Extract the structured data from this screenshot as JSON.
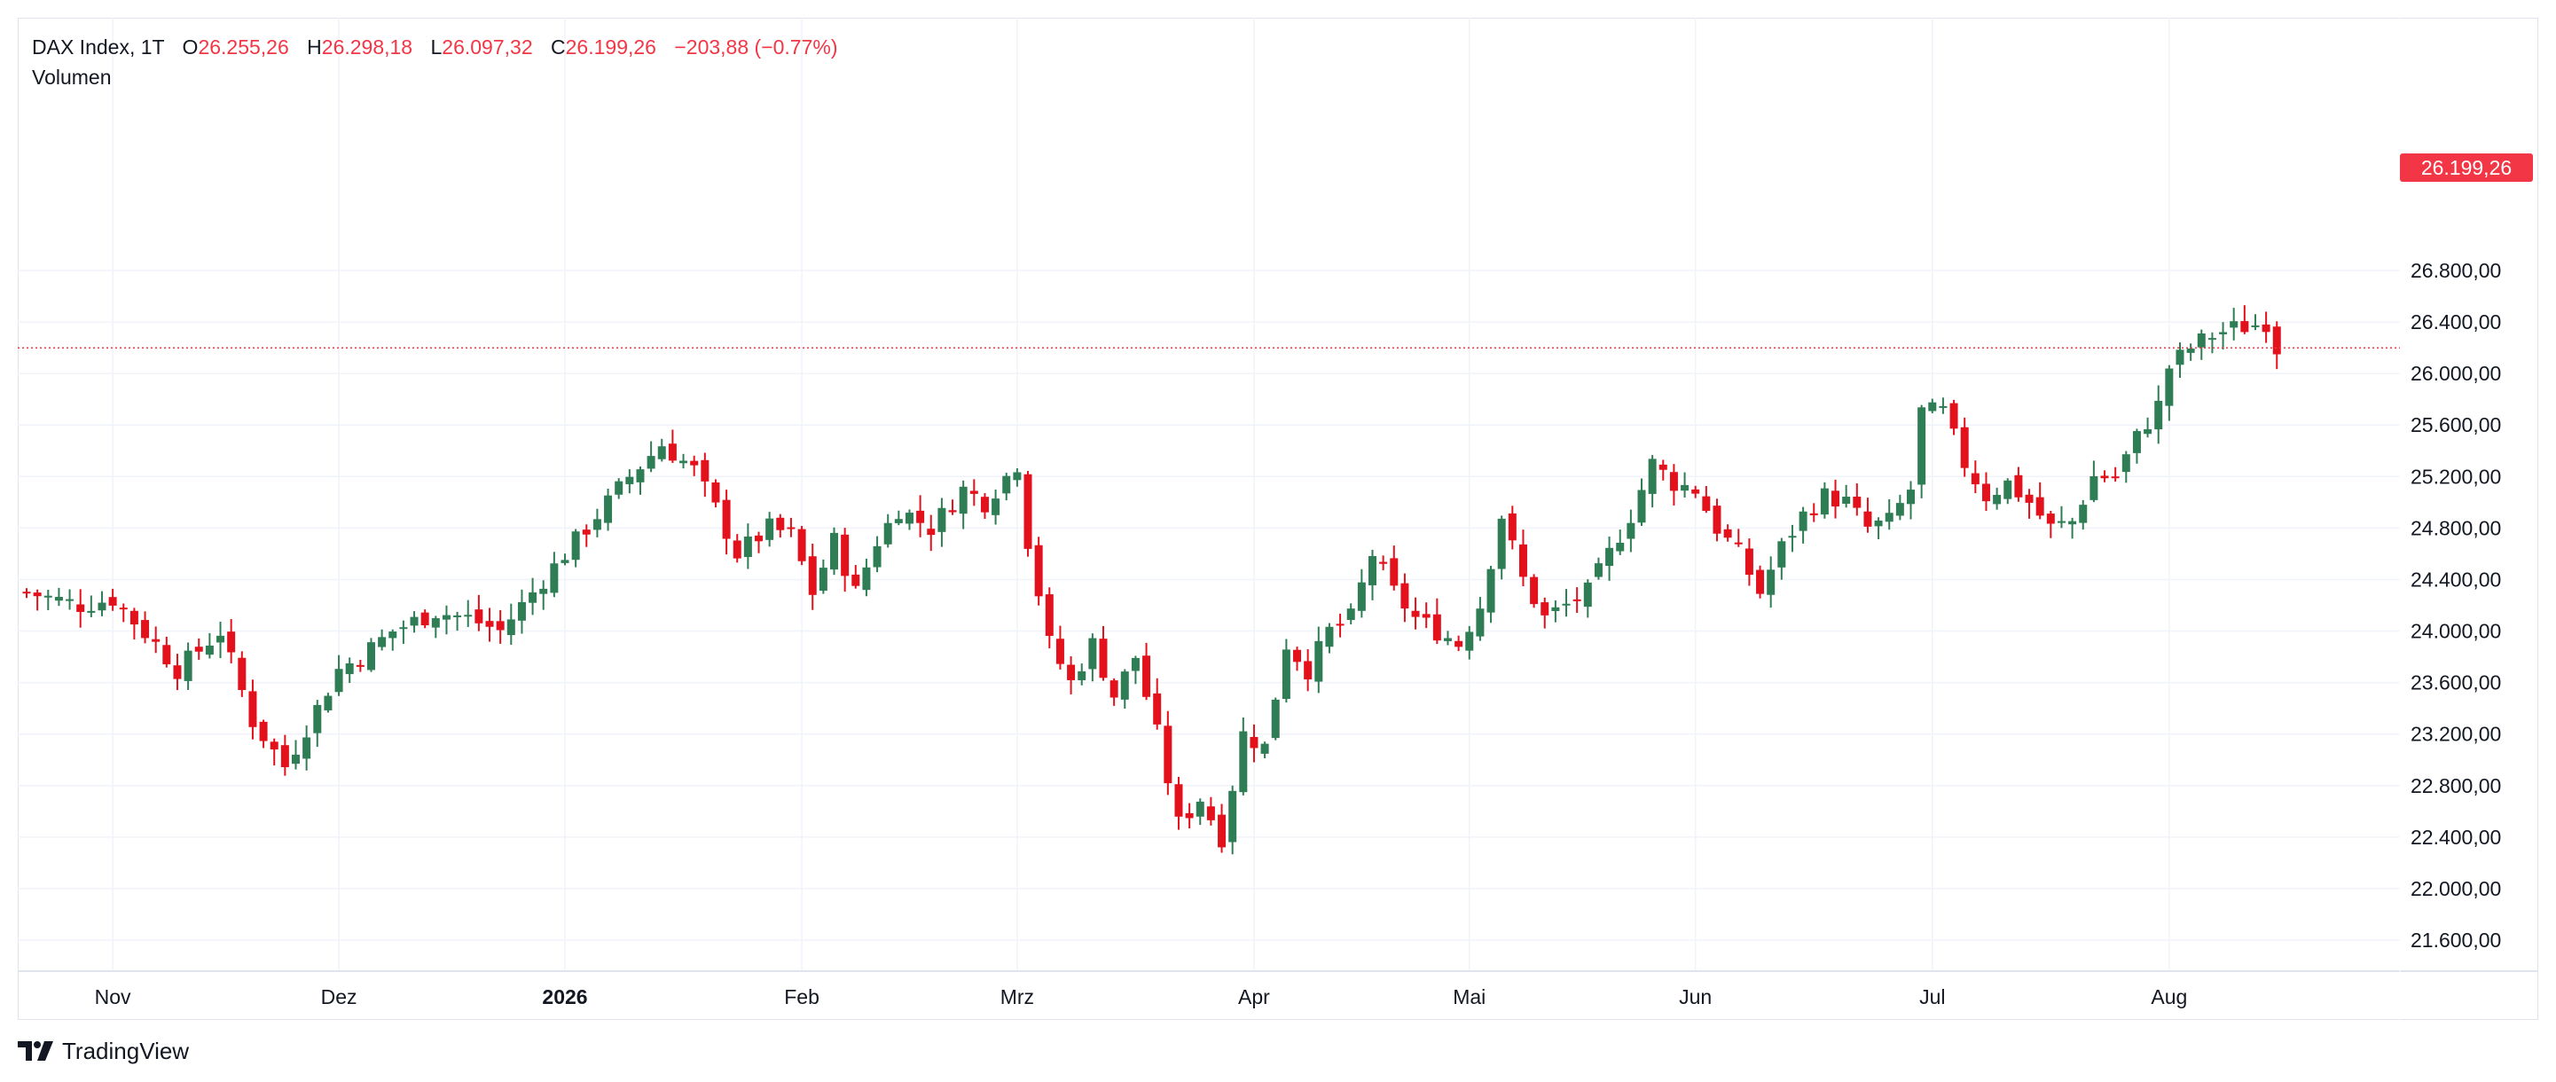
{
  "header": {
    "symbol": "DAX Index, 1T",
    "open_label": "O",
    "open_value": "26.255,26",
    "high_label": "H",
    "high_value": "26.298,18",
    "low_label": "L",
    "low_value": "26.097,32",
    "close_label": "C",
    "close_value": "26.199,26",
    "change": "−203,88 (−0.77%)",
    "volume_label": "Volumen"
  },
  "price_badge": "26.199,26",
  "brand": "TradingView",
  "colors": {
    "up": "#2e7d55",
    "down": "#e3111b",
    "grid": "#f0f3fa",
    "badge": "#f23645",
    "axis_text": "#131722"
  },
  "chart_data": {
    "type": "candlestick",
    "current_price": 26199.26,
    "ylim": [
      21400,
      27000
    ],
    "y_ticks": [
      21600,
      22000,
      22400,
      22800,
      23200,
      23600,
      24000,
      24400,
      24800,
      25200,
      25600,
      26000,
      26400,
      26800
    ],
    "y_tick_labels": [
      "21.600,00",
      "22.000,00",
      "22.400,00",
      "22.800,00",
      "23.200,00",
      "23.600,00",
      "24.000,00",
      "24.400,00",
      "24.800,00",
      "25.200,00",
      "25.600,00",
      "26.000,00",
      "26.400,00",
      "26.800,00"
    ],
    "x_labels": [
      {
        "text": "Nov",
        "index": 8,
        "bold": false
      },
      {
        "text": "Dez",
        "index": 29,
        "bold": false
      },
      {
        "text": "2026",
        "index": 50,
        "bold": true
      },
      {
        "text": "Feb",
        "index": 72,
        "bold": false
      },
      {
        "text": "Mrz",
        "index": 92,
        "bold": false
      },
      {
        "text": "Apr",
        "index": 114,
        "bold": false
      },
      {
        "text": "Mai",
        "index": 134,
        "bold": false
      },
      {
        "text": "Jun",
        "index": 155,
        "bold": false
      },
      {
        "text": "Jul",
        "index": 177,
        "bold": false
      },
      {
        "text": "Aug",
        "index": 199,
        "bold": false
      }
    ],
    "waypoints": [
      [
        0,
        24300
      ],
      [
        5,
        24200
      ],
      [
        8,
        24250
      ],
      [
        12,
        23900
      ],
      [
        14,
        23700
      ],
      [
        18,
        24000
      ],
      [
        21,
        23300
      ],
      [
        24,
        22950
      ],
      [
        27,
        23400
      ],
      [
        29,
        23700
      ],
      [
        31,
        23800
      ],
      [
        34,
        24000
      ],
      [
        38,
        24150
      ],
      [
        41,
        24100
      ],
      [
        44,
        24000
      ],
      [
        47,
        24300
      ],
      [
        50,
        24600
      ],
      [
        53,
        24900
      ],
      [
        56,
        25200
      ],
      [
        59,
        25450
      ],
      [
        62,
        25250
      ],
      [
        64,
        24950
      ],
      [
        66,
        24600
      ],
      [
        69,
        24800
      ],
      [
        71,
        24750
      ],
      [
        73,
        24300
      ],
      [
        75,
        24700
      ],
      [
        77,
        24300
      ],
      [
        79,
        24700
      ],
      [
        81,
        24950
      ],
      [
        84,
        24800
      ],
      [
        87,
        25100
      ],
      [
        89,
        25000
      ],
      [
        91,
        25200
      ],
      [
        92,
        25300
      ],
      [
        93,
        24700
      ],
      [
        95,
        23900
      ],
      [
        97,
        23600
      ],
      [
        99,
        23900
      ],
      [
        101,
        23500
      ],
      [
        103,
        23800
      ],
      [
        105,
        23200
      ],
      [
        107,
        22500
      ],
      [
        109,
        22700
      ],
      [
        111,
        22400
      ],
      [
        113,
        23200
      ],
      [
        115,
        23100
      ],
      [
        117,
        23900
      ],
      [
        119,
        23700
      ],
      [
        121,
        24000
      ],
      [
        123,
        24100
      ],
      [
        125,
        24600
      ],
      [
        127,
        24300
      ],
      [
        129,
        24100
      ],
      [
        131,
        24000
      ],
      [
        133,
        23900
      ],
      [
        135,
        24200
      ],
      [
        137,
        24900
      ],
      [
        139,
        24400
      ],
      [
        141,
        24100
      ],
      [
        143,
        24200
      ],
      [
        145,
        24300
      ],
      [
        147,
        24600
      ],
      [
        149,
        24900
      ],
      [
        151,
        25300
      ],
      [
        153,
        25150
      ],
      [
        155,
        25100
      ],
      [
        157,
        24800
      ],
      [
        159,
        24600
      ],
      [
        161,
        24300
      ],
      [
        163,
        24650
      ],
      [
        165,
        24900
      ],
      [
        167,
        25050
      ],
      [
        169,
        25000
      ],
      [
        171,
        24800
      ],
      [
        173,
        24850
      ],
      [
        175,
        25100
      ],
      [
        176,
        25700
      ],
      [
        178,
        25700
      ],
      [
        180,
        25300
      ],
      [
        182,
        25050
      ],
      [
        184,
        25150
      ],
      [
        186,
        25000
      ],
      [
        188,
        24800
      ],
      [
        190,
        24850
      ],
      [
        192,
        25200
      ],
      [
        194,
        25200
      ],
      [
        196,
        25500
      ],
      [
        198,
        25750
      ],
      [
        199,
        26050
      ],
      [
        201,
        26200
      ],
      [
        203,
        26300
      ],
      [
        205,
        26350
      ],
      [
        207,
        26380
      ],
      [
        208,
        26402
      ],
      [
        209,
        26199
      ]
    ]
  }
}
